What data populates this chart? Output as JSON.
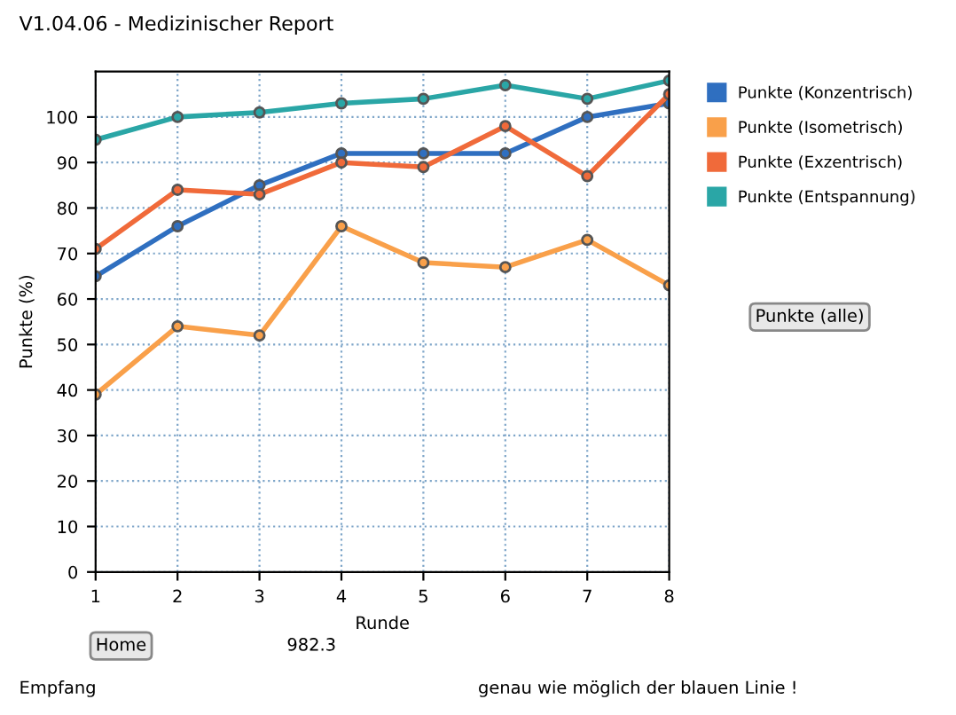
{
  "chart_data": {
    "type": "line",
    "title": "V1.04.06 - Medizinischer Report",
    "xlabel": "Runde",
    "ylabel": "Punkte (%)",
    "x": [
      1,
      2,
      3,
      4,
      5,
      6,
      7,
      8
    ],
    "series": [
      {
        "name": "Punkte (Konzentrisch)",
        "color": "#2f6fc0",
        "values": [
          65,
          76,
          85,
          92,
          92,
          92,
          100,
          103
        ]
      },
      {
        "name": "Punkte (Isometrisch)",
        "color": "#f9a04a",
        "values": [
          39,
          54,
          52,
          76,
          68,
          67,
          73,
          63
        ]
      },
      {
        "name": "Punkte (Exzentrisch)",
        "color": "#f06a3a",
        "values": [
          71,
          84,
          83,
          90,
          89,
          98,
          87,
          105
        ]
      },
      {
        "name": "Punkte (Entspannung)",
        "color": "#2aa6a6",
        "values": [
          95,
          100,
          101,
          103,
          104,
          107,
          104,
          108
        ]
      }
    ],
    "xlim": [
      1,
      8
    ],
    "xticks": [
      1,
      2,
      3,
      4,
      5,
      6,
      7,
      8
    ],
    "ylim": [
      0,
      110
    ],
    "yticks": [
      0,
      10,
      20,
      30,
      40,
      50,
      60,
      70,
      80,
      90,
      100
    ],
    "grid": true,
    "legend": "right",
    "marker": "circle",
    "line_style": "solid",
    "annotations": [
      "Punkte (alle)",
      "Home",
      "982.3",
      "Empfang",
      "genau wie möglich der blauen Linie !"
    ]
  }
}
